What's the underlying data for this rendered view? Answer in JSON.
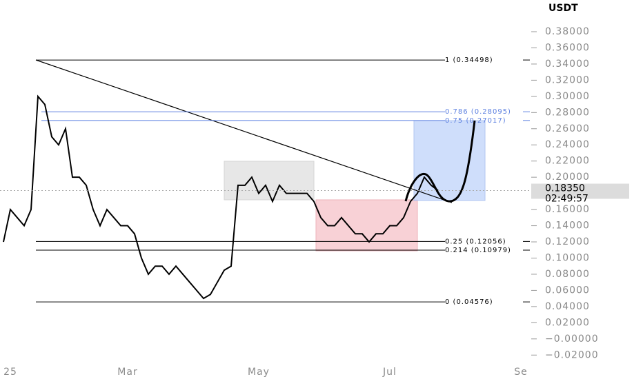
{
  "chart_data": {
    "type": "line",
    "currency": "USDT",
    "last_price_label": "0.18350",
    "countdown": "02:49:57",
    "categories": [
      null,
      "25",
      null,
      null,
      null,
      null,
      null,
      null,
      null,
      null,
      null,
      null,
      null,
      null,
      null,
      null,
      null,
      null,
      "Mar",
      null,
      null,
      null,
      null,
      null,
      null,
      null,
      null,
      null,
      null,
      null,
      null,
      null,
      null,
      null,
      null,
      null,
      null,
      "May",
      null,
      null,
      null,
      null,
      null,
      null,
      null,
      null,
      null,
      null,
      null,
      null,
      null,
      null,
      null,
      null,
      null,
      null,
      "Jul",
      null,
      null,
      null,
      null,
      null,
      null,
      null,
      null,
      null,
      null,
      null,
      null,
      null,
      null,
      null,
      null,
      null,
      null,
      "Se",
      null
    ],
    "series": [
      {
        "name": "USDT",
        "color": "#000000",
        "values": [
          0.12,
          0.16,
          0.15,
          0.14,
          0.16,
          0.3,
          0.29,
          0.25,
          0.24,
          0.26,
          0.2,
          0.2,
          0.19,
          0.16,
          0.14,
          0.16,
          0.15,
          0.14,
          0.14,
          0.13,
          0.1,
          0.08,
          0.09,
          0.09,
          0.08,
          0.09,
          0.08,
          0.07,
          0.06,
          0.05,
          0.055,
          0.07,
          0.085,
          0.09,
          0.19,
          0.19,
          0.2,
          0.18,
          0.19,
          0.17,
          0.19,
          0.18,
          0.18,
          0.18,
          0.18,
          0.17,
          0.15,
          0.14,
          0.14,
          0.15,
          0.14,
          0.13,
          0.13,
          0.12,
          0.13,
          0.13,
          0.14,
          0.14,
          0.15,
          0.17,
          0.18,
          0.2,
          0.19,
          0.1835,
          null,
          null,
          null,
          null,
          null,
          null,
          null,
          null,
          null,
          null,
          null,
          null,
          null
        ]
      }
    ],
    "ylim": [
      -0.03,
      0.41
    ],
    "yticks": [
      {
        "value": -0.02,
        "label": "−0.02000"
      },
      {
        "value": 0,
        "label": "−0.00000"
      },
      {
        "value": 0.02,
        "label": "0.02000"
      },
      {
        "value": 0.04,
        "label": "0.04000"
      },
      {
        "value": 0.06,
        "label": "0.06000"
      },
      {
        "value": 0.08,
        "label": "0.08000"
      },
      {
        "value": 0.1,
        "label": "0.10000"
      },
      {
        "value": 0.12,
        "label": "0.12000"
      },
      {
        "value": 0.14,
        "label": "0.14000"
      },
      {
        "value": 0.16,
        "label": "0.16000"
      },
      {
        "value": 0.18,
        "label": "0.18000"
      },
      {
        "value": 0.2,
        "label": "0.20000"
      },
      {
        "value": 0.22,
        "label": "0.22000"
      },
      {
        "value": 0.24,
        "label": "0.24000"
      },
      {
        "value": 0.26,
        "label": "0.26000"
      },
      {
        "value": 0.28,
        "label": "0.28000"
      },
      {
        "value": 0.3,
        "label": "0.30000"
      },
      {
        "value": 0.32,
        "label": "0.32000"
      },
      {
        "value": 0.34,
        "label": "0.34000"
      },
      {
        "value": 0.36,
        "label": "0.36000"
      },
      {
        "value": 0.38,
        "label": "0.38000"
      }
    ],
    "fib_levels": [
      {
        "label": "1 (0.34498)",
        "value": 0.34498,
        "color": "#000000"
      },
      {
        "label": "0.786 (0.28095)",
        "value": 0.28095,
        "color": "#5b7fe0"
      },
      {
        "label": "0.75 (0.27017)",
        "value": 0.27017,
        "color": "#5b7fe0"
      },
      {
        "label": "0.25 (0.12056)",
        "value": 0.12056,
        "color": "#000000"
      },
      {
        "label": "0.214 (0.10979)",
        "value": 0.10979,
        "color": "#000000"
      },
      {
        "label": "0 (0.04576)",
        "value": 0.04576,
        "color": "#000000"
      }
    ]
  }
}
